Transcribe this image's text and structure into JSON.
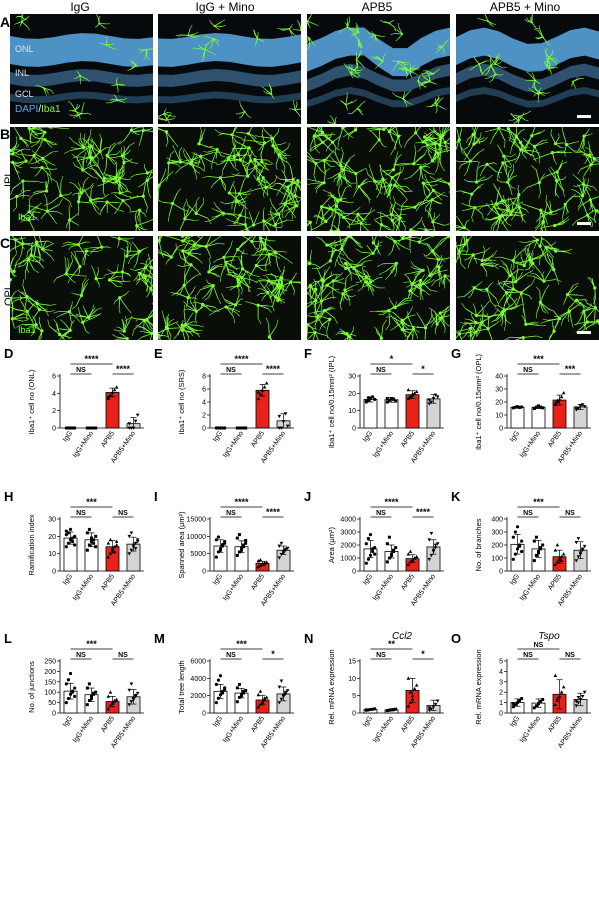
{
  "figure": {
    "columns": [
      "IgG",
      "IgG + Mino",
      "APB5",
      "APB5 + Mino"
    ],
    "panelA": {
      "letter": "A",
      "layers": [
        "ONL",
        "INL",
        "GCL"
      ],
      "stain_dapi": "DAPI",
      "stain_sep": "/",
      "stain_iba": "Iba1"
    },
    "panelB": {
      "letter": "B",
      "row_label": "IPL",
      "stain": "Iba1"
    },
    "panelC": {
      "letter": "C",
      "row_label": "OPL",
      "stain": "Iba1"
    },
    "colors": {
      "dapi": "#5aa9e6",
      "iba1": "#7cff3a",
      "apb5_bar": "#e8211b",
      "apb5_mino_bar": "#d4d4d4",
      "white_bar": "#ffffff"
    }
  },
  "chart_data": [
    {
      "panel": "D",
      "type": "bar",
      "categories": [
        "IgG",
        "IgG+Mino",
        "APB5",
        "APB5+Mino"
      ],
      "values": [
        0,
        0,
        4.1,
        0.5
      ],
      "errors": [
        0,
        0,
        0.5,
        0.7
      ],
      "ylabel": "Iba1⁺ cell no (ONL)",
      "ylim": [
        0,
        6
      ],
      "yticks": [
        "0",
        "2",
        "4",
        "6"
      ],
      "points": [
        [
          0,
          0,
          0,
          0,
          0
        ],
        [
          0,
          0,
          0,
          0,
          0
        ],
        [
          3.4,
          3.8,
          4.1,
          4.4,
          4.7,
          3.6
        ],
        [
          0,
          0,
          0,
          0.8,
          1.5,
          0.5
        ]
      ],
      "sig": [
        {
          "a": 0,
          "b": 2,
          "label": "****",
          "level": 1
        },
        {
          "a": 0,
          "b": 1,
          "label": "NS",
          "level": 0
        },
        {
          "a": 2,
          "b": 3,
          "label": "****",
          "level": 0
        }
      ]
    },
    {
      "panel": "E",
      "type": "bar",
      "categories": [
        "IgG",
        "IgG+Mino",
        "APB5",
        "APB5+Mino"
      ],
      "values": [
        0,
        0,
        5.8,
        1.1
      ],
      "errors": [
        0,
        0,
        0.9,
        1.1
      ],
      "ylabel": "Iba1⁺ cell no (SRS)",
      "ylim": [
        0,
        8
      ],
      "yticks": [
        "0",
        "2",
        "4",
        "6",
        "8"
      ],
      "points": [
        [
          0,
          0,
          0,
          0,
          0
        ],
        [
          0,
          0,
          0,
          0,
          0
        ],
        [
          4.5,
          5.2,
          5.8,
          6.3,
          6.9,
          5.5
        ],
        [
          0,
          0,
          1,
          2.2,
          0.3,
          1.8
        ]
      ],
      "sig": [
        {
          "a": 0,
          "b": 2,
          "label": "****",
          "level": 1
        },
        {
          "a": 0,
          "b": 1,
          "label": "NS",
          "level": 0
        },
        {
          "a": 2,
          "b": 3,
          "label": "****",
          "level": 0
        }
      ]
    },
    {
      "panel": "F",
      "type": "bar",
      "categories": [
        "IgG",
        "IgG+Mino",
        "APB5",
        "APB5+Mino"
      ],
      "values": [
        16.5,
        16.3,
        19.2,
        16.8
      ],
      "errors": [
        1.5,
        1.4,
        2.3,
        2.5
      ],
      "ylabel": "Iba1⁺ cell no/0.15mm² (IPL)",
      "ylim": [
        0,
        30
      ],
      "yticks": [
        "0",
        "10",
        "20",
        "30"
      ],
      "points": [
        [
          15,
          16,
          17,
          18,
          16.5,
          15.5,
          17.5
        ],
        [
          15,
          16,
          17,
          16.5,
          15.5,
          17
        ],
        [
          17,
          18,
          19,
          20,
          21,
          22,
          18.5,
          19.5
        ],
        [
          14,
          15,
          17,
          19,
          18,
          16
        ]
      ],
      "sig": [
        {
          "a": 0,
          "b": 2,
          "label": "*",
          "level": 1
        },
        {
          "a": 0,
          "b": 1,
          "label": "NS",
          "level": 0
        },
        {
          "a": 2,
          "b": 3,
          "label": "*",
          "level": 0
        }
      ]
    },
    {
      "panel": "G",
      "type": "bar",
      "categories": [
        "IgG",
        "IgG+Mino",
        "APB5",
        "APB5+Mino"
      ],
      "values": [
        16.0,
        16.0,
        21.5,
        16.2
      ],
      "errors": [
        0.8,
        1.0,
        3.8,
        2.0
      ],
      "ylabel": "Iba1⁺ cell no/0.15mm² (OPL)",
      "ylim": [
        0,
        40
      ],
      "yticks": [
        "0",
        "10",
        "20",
        "30",
        "40"
      ],
      "points": [
        [
          15.5,
          16,
          16.5,
          15.8,
          16.2
        ],
        [
          15,
          16,
          17,
          16,
          15.5
        ],
        [
          18,
          20,
          22,
          24,
          27,
          19,
          21
        ],
        [
          14,
          15,
          17,
          18,
          16.5,
          15.5
        ]
      ],
      "sig": [
        {
          "a": 0,
          "b": 2,
          "label": "***",
          "level": 1
        },
        {
          "a": 0,
          "b": 1,
          "label": "NS",
          "level": 0
        },
        {
          "a": 2,
          "b": 3,
          "label": "***",
          "level": 0
        }
      ]
    },
    {
      "panel": "H",
      "type": "bar",
      "categories": [
        "IgG",
        "IgG+Mino",
        "APB5",
        "APB5+Mino"
      ],
      "values": [
        19,
        18,
        14,
        15.5
      ],
      "errors": [
        3.5,
        4,
        3.5,
        4
      ],
      "ylabel": "Ramification index",
      "ylim": [
        0,
        30
      ],
      "yticks": [
        "0",
        "10",
        "20",
        "30"
      ],
      "points": [
        [
          14,
          16,
          18,
          19,
          20,
          21,
          22,
          24,
          17,
          15,
          23
        ],
        [
          12,
          15,
          17,
          18,
          20,
          22,
          24,
          19,
          16,
          14
        ],
        [
          8,
          10,
          12,
          14,
          15,
          16,
          18,
          13,
          11,
          17
        ],
        [
          10,
          12,
          14,
          16,
          18,
          20,
          22,
          15,
          13,
          17
        ]
      ],
      "sig": [
        {
          "a": 0,
          "b": 2,
          "label": "***",
          "level": 1
        },
        {
          "a": 0,
          "b": 1,
          "label": "NS",
          "level": 0
        },
        {
          "a": 2,
          "b": 3,
          "label": "NS",
          "level": 0
        }
      ]
    },
    {
      "panel": "I",
      "type": "bar",
      "categories": [
        "IgG",
        "IgG+Mino",
        "APB5",
        "APB5+Mino"
      ],
      "values": [
        7200,
        7000,
        2200,
        6000
      ],
      "errors": [
        1800,
        1700,
        600,
        1200
      ],
      "ylabel": "Spanned area (μm²)",
      "ylim": [
        0,
        15000
      ],
      "yticks": [
        "0",
        "5000",
        "10000",
        "15000"
      ],
      "points": [
        [
          4000,
          5500,
          6500,
          7200,
          8000,
          9000,
          9800,
          6000,
          7600,
          8500
        ],
        [
          4500,
          5500,
          6500,
          7000,
          8000,
          9500,
          10500,
          6000,
          7500,
          8800
        ],
        [
          1200,
          1600,
          2000,
          2200,
          2500,
          2900,
          3200,
          1800,
          2400
        ],
        [
          3800,
          4800,
          5600,
          6000,
          6600,
          7200,
          8000,
          5200,
          6300
        ]
      ],
      "sig": [
        {
          "a": 0,
          "b": 2,
          "label": "****",
          "level": 1
        },
        {
          "a": 0,
          "b": 1,
          "label": "NS",
          "level": 0
        },
        {
          "a": 2,
          "b": 3,
          "label": "****",
          "level": 0
        }
      ]
    },
    {
      "panel": "J",
      "type": "bar",
      "categories": [
        "IgG",
        "IgG+Mino",
        "APB5",
        "APB5+Mino"
      ],
      "values": [
        1700,
        1500,
        950,
        1850
      ],
      "errors": [
        650,
        500,
        300,
        550
      ],
      "ylabel": "Area (μm²)",
      "ylim": [
        0,
        4000
      ],
      "yticks": [
        "0",
        "1000",
        "2000",
        "3000",
        "4000"
      ],
      "points": [
        [
          600,
          900,
          1200,
          1500,
          1800,
          2100,
          2500,
          2800,
          1700,
          1300
        ],
        [
          700,
          1000,
          1300,
          1500,
          1800,
          2100,
          2600,
          1200,
          1600
        ],
        [
          500,
          700,
          850,
          950,
          1100,
          1300,
          1500,
          800,
          1000
        ],
        [
          900,
          1200,
          1500,
          1800,
          2100,
          2400,
          2900,
          1600,
          2000
        ]
      ],
      "sig": [
        {
          "a": 0,
          "b": 2,
          "label": "****",
          "level": 1
        },
        {
          "a": 0,
          "b": 1,
          "label": "NS",
          "level": 0
        },
        {
          "a": 2,
          "b": 3,
          "label": "****",
          "level": 0
        }
      ]
    },
    {
      "panel": "K",
      "type": "bar",
      "categories": [
        "IgG",
        "IgG+Mino",
        "APB5",
        "APB5+Mino"
      ],
      "values": [
        205,
        170,
        110,
        160
      ],
      "errors": [
        75,
        65,
        50,
        65
      ],
      "ylabel": "No. of branches",
      "ylim": [
        0,
        400
      ],
      "yticks": [
        "0",
        "100",
        "200",
        "300",
        "400"
      ],
      "points": [
        [
          90,
          130,
          170,
          200,
          230,
          260,
          300,
          340,
          190,
          150
        ],
        [
          80,
          120,
          150,
          170,
          200,
          230,
          260,
          140,
          180
        ],
        [
          50,
          70,
          90,
          110,
          130,
          160,
          200,
          100,
          80
        ],
        [
          80,
          110,
          140,
          160,
          190,
          220,
          250,
          130,
          170
        ]
      ],
      "sig": [
        {
          "a": 0,
          "b": 2,
          "label": "***",
          "level": 1
        },
        {
          "a": 0,
          "b": 1,
          "label": "NS",
          "level": 0
        },
        {
          "a": 2,
          "b": 3,
          "label": "NS",
          "level": 0
        }
      ]
    },
    {
      "panel": "L",
      "type": "bar",
      "categories": [
        "IgG",
        "IgG+Mino",
        "APB5",
        "APB5+Mino"
      ],
      "values": [
        105,
        88,
        55,
        78
      ],
      "errors": [
        38,
        32,
        25,
        35
      ],
      "ylabel": "No. of junctions",
      "ylim": [
        0,
        250
      ],
      "yticks": [
        "0",
        "50",
        "100",
        "150",
        "200",
        "250"
      ],
      "points": [
        [
          50,
          70,
          90,
          105,
          120,
          140,
          160,
          190,
          100,
          80
        ],
        [
          40,
          60,
          80,
          90,
          100,
          120,
          140,
          70,
          95
        ],
        [
          20,
          35,
          45,
          55,
          65,
          80,
          100,
          50,
          60
        ],
        [
          40,
          55,
          70,
          80,
          95,
          110,
          140,
          65,
          85
        ]
      ],
      "sig": [
        {
          "a": 0,
          "b": 2,
          "label": "***",
          "level": 1
        },
        {
          "a": 0,
          "b": 1,
          "label": "NS",
          "level": 0
        },
        {
          "a": 2,
          "b": 3,
          "label": "NS",
          "level": 0
        }
      ]
    },
    {
      "panel": "M",
      "type": "bar",
      "categories": [
        "IgG",
        "IgG+Mino",
        "APB5",
        "APB5+Mino"
      ],
      "values": [
        2500,
        2300,
        1500,
        2200
      ],
      "errors": [
        800,
        550,
        550,
        800
      ],
      "ylabel": "Total tree length",
      "ylim": [
        0,
        6000
      ],
      "yticks": [
        "0",
        "2000",
        "4000",
        "6000"
      ],
      "points": [
        [
          1200,
          1700,
          2100,
          2500,
          2900,
          3300,
          3800,
          4300,
          2300,
          2700
        ],
        [
          1300,
          1800,
          2100,
          2300,
          2600,
          2900,
          3300,
          2000,
          2500
        ],
        [
          700,
          1000,
          1300,
          1500,
          1800,
          2100,
          2500,
          1200,
          1700
        ],
        [
          1200,
          1600,
          2000,
          2200,
          2600,
          3000,
          3700,
          1900,
          2400
        ]
      ],
      "sig": [
        {
          "a": 0,
          "b": 2,
          "label": "***",
          "level": 1
        },
        {
          "a": 0,
          "b": 1,
          "label": "NS",
          "level": 0
        },
        {
          "a": 2,
          "b": 3,
          "label": "*",
          "level": 0
        }
      ]
    },
    {
      "panel": "N",
      "type": "bar",
      "gene": "Ccl2",
      "categories": [
        "IgG",
        "IgG+Mino",
        "APB5",
        "APB5+Mino"
      ],
      "values": [
        1.0,
        0.9,
        6.5,
        2.2
      ],
      "errors": [
        0.2,
        0.3,
        3.5,
        1.5
      ],
      "ylabel": "Rel. mRNA expression",
      "ylim": [
        0,
        15
      ],
      "yticks": [
        "0",
        "5",
        "10",
        "15"
      ],
      "points": [
        [
          0.8,
          0.9,
          1.0,
          1.1,
          1.2,
          0.9
        ],
        [
          0.7,
          0.8,
          0.9,
          1.0,
          1.1
        ],
        [
          2,
          3,
          5,
          7,
          8,
          10,
          6,
          4
        ],
        [
          0.8,
          1.2,
          1.8,
          2.5,
          3.5,
          1.5
        ]
      ],
      "sig": [
        {
          "a": 0,
          "b": 2,
          "label": "**",
          "level": 1
        },
        {
          "a": 0,
          "b": 1,
          "label": "NS",
          "level": 0
        },
        {
          "a": 2,
          "b": 3,
          "label": "*",
          "level": 0
        }
      ]
    },
    {
      "panel": "O",
      "type": "bar",
      "gene": "Tspo",
      "categories": [
        "IgG",
        "IgG+Mino",
        "APB5",
        "APB5+Mino"
      ],
      "values": [
        1.0,
        0.95,
        1.8,
        1.3
      ],
      "errors": [
        0.35,
        0.4,
        1.4,
        0.6
      ],
      "ylabel": "Rel. mRNA expression",
      "ylim": [
        0,
        5
      ],
      "yticks": [
        "0",
        "1",
        "2",
        "3",
        "4",
        "5"
      ],
      "points": [
        [
          0.6,
          0.8,
          1.0,
          1.2,
          1.4,
          0.9
        ],
        [
          0.5,
          0.7,
          0.9,
          1.1,
          1.3
        ],
        [
          0.8,
          1.2,
          1.6,
          2.0,
          2.5,
          3.6,
          1.4
        ],
        [
          0.7,
          1.0,
          1.3,
          1.6,
          2.0,
          1.1,
          1.5
        ]
      ],
      "sig": [
        {
          "a": 0,
          "b": 2,
          "label": "NS",
          "level": 1
        },
        {
          "a": 0,
          "b": 1,
          "label": "NS",
          "level": 0
        },
        {
          "a": 2,
          "b": 3,
          "label": "NS",
          "level": 0
        }
      ]
    }
  ]
}
